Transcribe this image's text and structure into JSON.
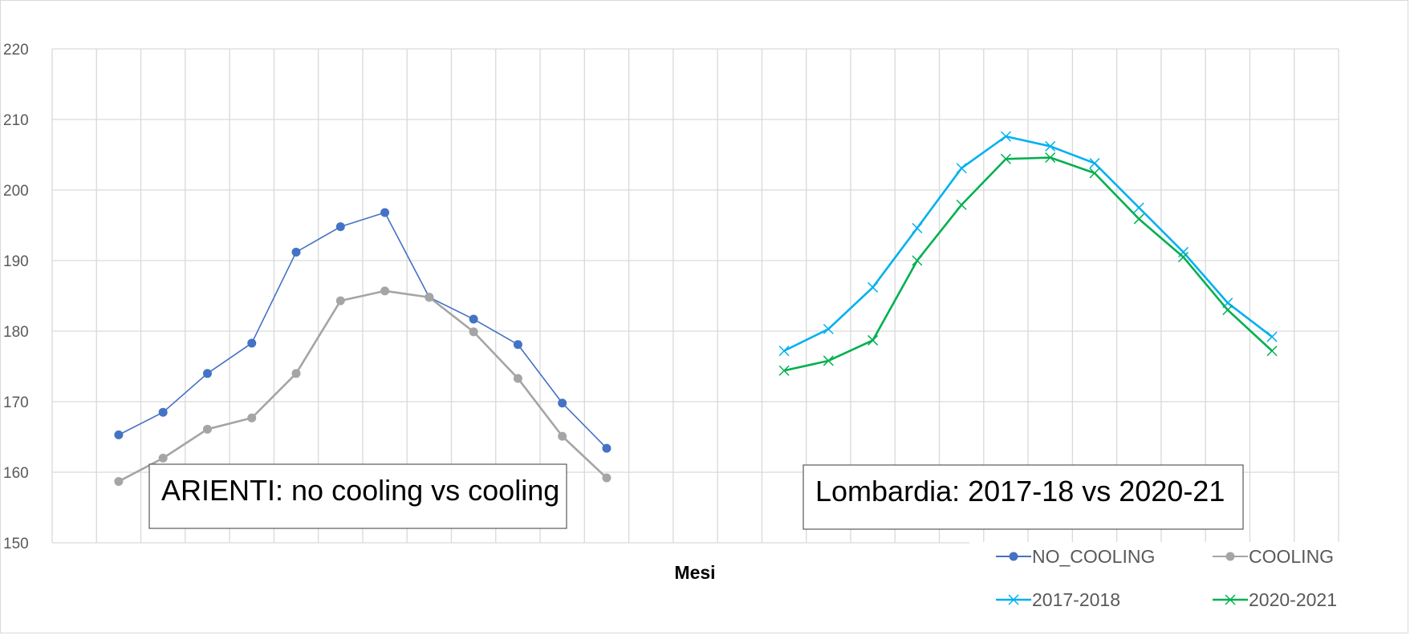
{
  "chart_data": {
    "type": "line",
    "xlabel": "Mesi",
    "ylabel": "",
    "ylim": [
      150,
      220
    ],
    "yticks": [
      150,
      160,
      170,
      180,
      190,
      200,
      210,
      220
    ],
    "grid": true,
    "x_slots": 29,
    "annotations": [
      {
        "text": "ARIENTI: no cooling vs cooling"
      },
      {
        "text": "Lombardia: 2017-18 vs 2020-21"
      }
    ],
    "legend_position": "bottom-right",
    "series": [
      {
        "name": "NO_COOLING",
        "color": "#4472C4",
        "marker": "circle",
        "start_index": 1,
        "values": [
          165.3,
          168.5,
          174.0,
          178.3,
          191.2,
          194.8,
          196.8,
          184.8,
          181.7,
          178.1,
          169.8,
          163.4
        ]
      },
      {
        "name": "COOLING",
        "color": "#A5A5A5",
        "marker": "circle",
        "start_index": 1,
        "values": [
          158.7,
          162.0,
          166.1,
          167.7,
          174.0,
          184.3,
          185.7,
          184.8,
          179.9,
          173.3,
          165.1,
          159.2
        ]
      },
      {
        "name": "2017-2018",
        "color": "#00B0F0",
        "marker": "x",
        "start_index": 16,
        "values": [
          177.2,
          180.3,
          186.2,
          194.6,
          203.1,
          207.6,
          206.2,
          203.8,
          197.5,
          191.2,
          184.0,
          179.2
        ]
      },
      {
        "name": "2020-2021",
        "color": "#00B050",
        "marker": "x",
        "start_index": 16,
        "values": [
          174.4,
          175.8,
          178.7,
          190.0,
          197.9,
          204.4,
          204.6,
          202.4,
          195.9,
          190.5,
          183.0,
          177.2
        ]
      }
    ]
  }
}
